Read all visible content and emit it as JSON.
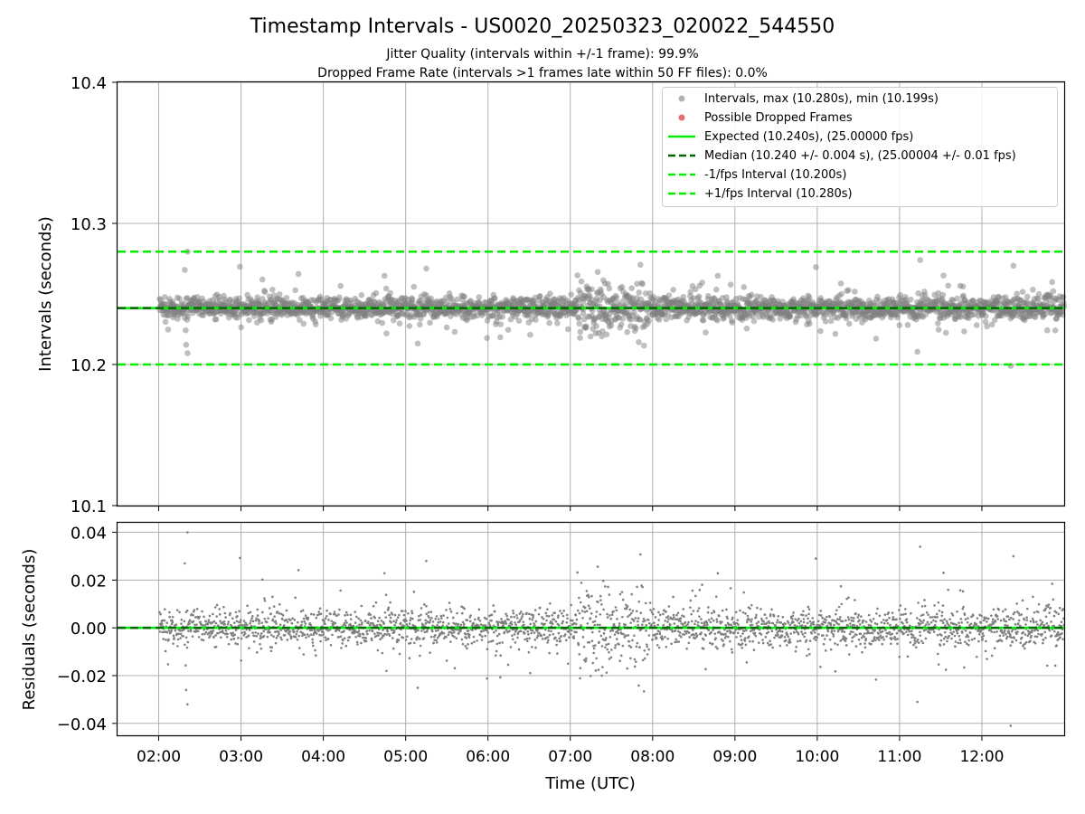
{
  "title": "Timestamp Intervals - US0020_20250323_020022_544550",
  "subtitle_1": "Jitter Quality (intervals within +/-1 frame): 99.9%",
  "subtitle_2": "Dropped Frame Rate (intervals >1 frames late within 50 FF files): 0.0%",
  "colors": {
    "points": "#808080",
    "dropped": "#e05555",
    "expected": "#00ee00",
    "median": "#006400",
    "grid": "#b0b0b0"
  },
  "chart_data": [
    {
      "type": "scatter",
      "ylabel": "Intervals (seconds)",
      "ylim": [
        10.1,
        10.4
      ],
      "yticks": [
        10.1,
        10.2,
        10.3,
        10.4
      ],
      "ytick_labels": [
        "10.1",
        "10.2",
        "10.3",
        "10.4"
      ],
      "xlim_hours": [
        1.5,
        13.0
      ],
      "grid": true,
      "legend_position": "top-right",
      "legend": {
        "intervals": "Intervals, max (10.280s), min (10.199s)",
        "dropped": "Possible Dropped Frames",
        "expected": "Expected (10.240s), (25.00000 fps)",
        "median": "Median (10.240 +/- 0.004 s), (25.00004 +/- 0.01 fps)",
        "minus": "-1/fps Interval (10.200s)",
        "plus": "+1/fps Interval (10.280s)"
      },
      "lines": {
        "expected": 10.24,
        "median": 10.24,
        "minus_1_fps": 10.2,
        "plus_1_fps": 10.28
      },
      "series": [
        {
          "name": "Intervals",
          "count_approx": 3700,
          "x_range": [
            "02:00",
            "13:00"
          ],
          "center": 10.24,
          "core_spread": 0.004,
          "max": 10.28,
          "min": 10.199,
          "notable_points": [
            {
              "x": "02:21",
              "y": 10.28
            },
            {
              "x": "02:19",
              "y": 10.267
            },
            {
              "x": "02:21",
              "y": 10.208
            },
            {
              "x": "02:20",
              "y": 10.214
            },
            {
              "x": "05:15",
              "y": 10.268
            },
            {
              "x": "09:59",
              "y": 10.269
            },
            {
              "x": "11:15",
              "y": 10.274
            },
            {
              "x": "11:13",
              "y": 10.209
            },
            {
              "x": "12:21",
              "y": 10.199
            },
            {
              "x": "12:23",
              "y": 10.27
            }
          ],
          "high_scatter_window": [
            "07:05",
            "07:55"
          ]
        }
      ]
    },
    {
      "type": "scatter",
      "xlabel": "Time (UTC)",
      "ylabel": "Residuals (seconds)",
      "ylim": [
        -0.045,
        0.044
      ],
      "yticks": [
        -0.04,
        -0.02,
        0.0,
        0.02,
        0.04
      ],
      "ytick_labels": [
        "−0.04",
        "−0.02",
        "0.00",
        "0.02",
        "0.04"
      ],
      "xticks": [
        "02:00",
        "03:00",
        "04:00",
        "05:00",
        "06:00",
        "07:00",
        "08:00",
        "09:00",
        "10:00",
        "11:00",
        "12:00"
      ],
      "grid": true,
      "lines": {
        "expected": 0.0,
        "median": 0.0
      },
      "series": [
        {
          "name": "Residuals",
          "center": 0.0,
          "core_spread": 0.004,
          "max": 0.04,
          "min": -0.041
        }
      ]
    }
  ]
}
